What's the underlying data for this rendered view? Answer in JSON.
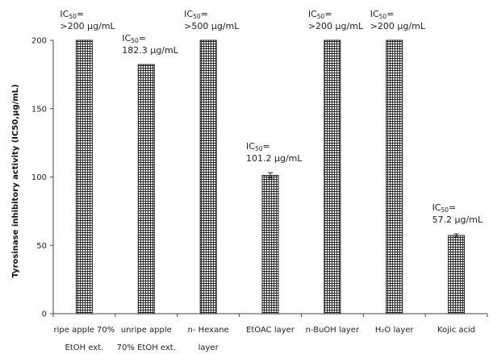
{
  "chart_data": {
    "type": "bar",
    "ylabel": "Tyrosinase inhibitory activity (IC50,μg/mL)",
    "ylim": [
      0,
      200
    ],
    "yticks": [
      0,
      50,
      100,
      150,
      200
    ],
    "grid": false,
    "bar_pattern": "grid-hatched",
    "bar_color": "#222222",
    "categories": [
      [
        "ripe apple 70%",
        "EtOH ext."
      ],
      [
        "unripe apple",
        "70% EtOH ext."
      ],
      [
        "n- Hexane",
        "layer"
      ],
      [
        "EtOAC layer"
      ],
      [
        "n-BuOH layer"
      ],
      [
        "H₂O layer"
      ],
      [
        "Kojic acid"
      ]
    ],
    "values": [
      200,
      182.3,
      200,
      101.2,
      200,
      200,
      57.2
    ],
    "errors": [
      0,
      0,
      0,
      2,
      0,
      0,
      1.2
    ],
    "annotations": [
      [
        ">200 μg/mL"
      ],
      [
        "182.3 μg/mL"
      ],
      [
        ">500 μg/mL"
      ],
      [
        "101.2 μg/mL"
      ],
      [
        ">200 μg/mL"
      ],
      [
        ">200 μg/mL"
      ],
      [
        "57.2 μg/mL"
      ]
    ],
    "annotation_prefix": "IC",
    "annotation_sub": "50",
    "annotation_eq": "="
  }
}
